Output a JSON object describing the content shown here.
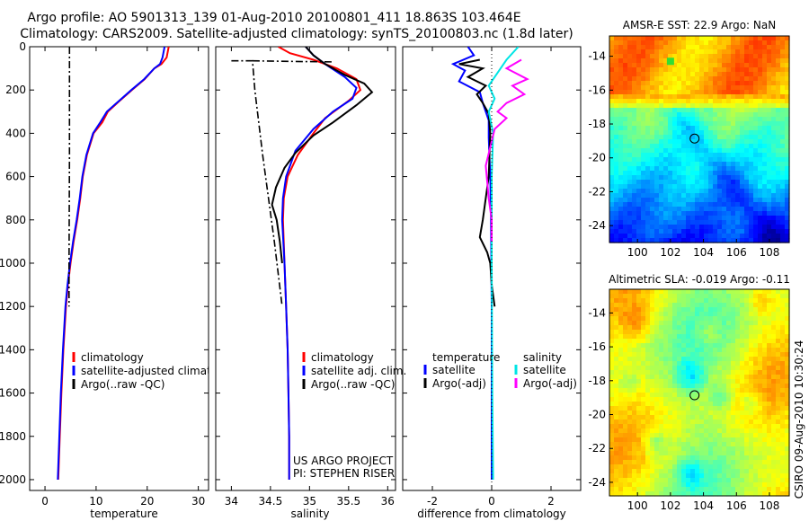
{
  "header": {
    "line1": "Argo profile: AO 5901313_139 01-Aug-2010 20100801_411 18.863S 103.464E",
    "line2": "Climatology: CARS2009. Satellite-adjusted climatology: synTS_20100803.nc (1.8d later)"
  },
  "side_label": "CSIRO 09-Aug-2010 10:30:24",
  "colors": {
    "clim": "#ff0000",
    "sat": "#0000ff",
    "argo": "#000000",
    "sal_sat": "#00e5e5",
    "sal_argo": "#ff00ff"
  },
  "chart_data": [
    {
      "type": "line",
      "id": "temperature",
      "xlabel": "temperature",
      "ylabel": "",
      "xlim": [
        -3,
        32
      ],
      "ylim": [
        2050,
        0
      ],
      "xticks": [
        0,
        10,
        20,
        30
      ],
      "yticks": [
        0,
        200,
        400,
        600,
        800,
        1000,
        1200,
        1400,
        1600,
        1800,
        2000
      ],
      "legend": [
        "climatology",
        "satellite-adjusted climatology",
        "Argo(..raw -QC)"
      ],
      "series": [
        {
          "role": "clim",
          "style": "solid",
          "x": [
            24.2,
            23.8,
            22.8,
            21.4,
            19.5,
            17.0,
            14.6,
            12.3,
            11.2,
            9.5,
            8.2,
            7.4,
            6.9,
            6.3,
            5.6,
            5.0,
            4.5,
            4.1,
            3.6,
            3.2,
            2.9,
            2.6
          ],
          "y": [
            0,
            50,
            80,
            100,
            150,
            200,
            250,
            300,
            350,
            400,
            500,
            600,
            700,
            800,
            900,
            1000,
            1100,
            1200,
            1400,
            1600,
            1800,
            2000
          ]
        },
        {
          "role": "sat",
          "style": "solid",
          "x": [
            23.4,
            23.0,
            22.5,
            21.4,
            19.4,
            16.9,
            14.5,
            12.1,
            10.8,
            9.4,
            8.1,
            7.3,
            6.8,
            6.2,
            5.5,
            4.9,
            4.4,
            4.0,
            3.5,
            3.1,
            2.8,
            2.5
          ],
          "y": [
            0,
            50,
            80,
            100,
            150,
            200,
            250,
            300,
            350,
            400,
            500,
            600,
            700,
            800,
            900,
            1000,
            1100,
            1200,
            1400,
            1600,
            1800,
            2000
          ]
        },
        {
          "role": "argo",
          "style": "dashdot",
          "x": [
            4.8,
            4.8,
            4.7,
            4.7
          ],
          "y": [
            0,
            500,
            1000,
            1200
          ]
        }
      ]
    },
    {
      "type": "line",
      "id": "salinity",
      "xlabel": "salinity",
      "ylabel": "",
      "xlim": [
        33.8,
        36.1
      ],
      "ylim": [
        2050,
        0
      ],
      "xticks": [
        34,
        34.5,
        35,
        35.5,
        36
      ],
      "legend": [
        "climatology",
        "satellite adj. clim.",
        "Argo(..raw -QC)"
      ],
      "annotation": [
        "US ARGO PROJECT",
        "PI: STEPHEN RISER"
      ],
      "series": [
        {
          "role": "clim",
          "style": "solid",
          "x": [
            34.6,
            34.75,
            35.05,
            35.35,
            35.6,
            35.65,
            35.5,
            35.2,
            35.05,
            34.85,
            34.72,
            34.67,
            34.66,
            34.68,
            34.7,
            34.72,
            34.73,
            34.74,
            34.74
          ],
          "y": [
            0,
            30,
            60,
            100,
            150,
            200,
            250,
            330,
            400,
            500,
            600,
            700,
            800,
            1000,
            1200,
            1400,
            1600,
            1800,
            2000
          ]
        },
        {
          "role": "sat",
          "style": "solid",
          "x": [
            34.95,
            35.05,
            35.2,
            35.45,
            35.6,
            35.55,
            35.3,
            35.05,
            34.82,
            34.7,
            34.66,
            34.65,
            34.68,
            34.7,
            34.72,
            34.73,
            34.74,
            34.74
          ],
          "y": [
            0,
            40,
            80,
            140,
            190,
            240,
            300,
            380,
            480,
            600,
            700,
            800,
            1000,
            1200,
            1400,
            1600,
            1800,
            2000
          ]
        },
        {
          "role": "argo",
          "style": "solid",
          "x": [
            34.95,
            35.05,
            35.2,
            35.45,
            35.7,
            35.8,
            35.6,
            35.3,
            35.05,
            34.82,
            34.68,
            34.57,
            34.52,
            34.58,
            34.62,
            34.65
          ],
          "y": [
            0,
            40,
            80,
            130,
            170,
            210,
            270,
            350,
            410,
            490,
            560,
            650,
            730,
            800,
            900,
            1000
          ]
        },
        {
          "role": "argo",
          "style": "dashdot",
          "x": [
            34.0,
            34.27,
            34.3,
            34.4,
            34.55,
            34.65
          ],
          "y": [
            65,
            65,
            200,
            500,
            900,
            1200
          ]
        },
        {
          "role": "argo",
          "style": "dashdot",
          "x": [
            34.27,
            34.8,
            35.3
          ],
          "y": [
            65,
            68,
            70
          ]
        }
      ]
    },
    {
      "type": "line",
      "id": "difference",
      "xlabel": "difference from climatology",
      "ylabel": "",
      "xlim": [
        -3,
        3
      ],
      "ylim": [
        2050,
        0
      ],
      "xticks": [
        -2,
        0,
        2
      ],
      "legend_left": [
        "temperature",
        "satellite",
        "Argo(-adj)"
      ],
      "legend_right": [
        "salinity",
        "satellite",
        "Argo(-adj)"
      ],
      "series": [
        {
          "role": "sat",
          "style": "solid",
          "x": [
            -0.8,
            -0.6,
            -1.3,
            -0.9,
            -1.1,
            -0.4,
            -0.3,
            -0.1,
            -0.1,
            -0.05,
            -0.02,
            0,
            0
          ],
          "y": [
            0,
            40,
            80,
            110,
            160,
            210,
            260,
            340,
            420,
            600,
            800,
            1200,
            2000
          ]
        },
        {
          "role": "argo",
          "style": "solid",
          "x": [
            -0.4,
            -1.1,
            -0.3,
            -0.8,
            -0.2,
            -0.5,
            -0.3,
            -0.1,
            -0.05,
            -0.1,
            -0.3,
            -0.4,
            -0.15,
            -0.05,
            0,
            0.1
          ],
          "y": [
            60,
            80,
            100,
            140,
            180,
            220,
            260,
            310,
            400,
            600,
            800,
            880,
            950,
            1000,
            1100,
            1200
          ]
        },
        {
          "role": "sal_sat",
          "style": "solid",
          "x": [
            0.9,
            0.5,
            0.2,
            -0.1,
            0.1,
            -0.1,
            0.05,
            0,
            0,
            0.02,
            0.05
          ],
          "y": [
            0,
            60,
            120,
            180,
            240,
            300,
            400,
            600,
            1000,
            1600,
            2000
          ]
        },
        {
          "role": "sal_argo",
          "style": "solid",
          "x": [
            1.0,
            0.5,
            1.2,
            0.7,
            1.1,
            0.5,
            0.2,
            0.5,
            0.1,
            -0.2,
            -0.1,
            0.0,
            0.0
          ],
          "y": [
            60,
            100,
            150,
            180,
            220,
            260,
            300,
            330,
            380,
            550,
            700,
            800,
            900
          ]
        }
      ]
    },
    {
      "type": "heatmap",
      "id": "amsre",
      "title": "AMSR-E SST: 22.9 Argo: NaN",
      "xlim": [
        98.3,
        109.2
      ],
      "ylim": [
        -25.0,
        -12.8
      ],
      "xticks": [
        100,
        102,
        104,
        106,
        108
      ],
      "yticks": [
        -14,
        -16,
        -18,
        -20,
        -22,
        -24
      ],
      "marker": [
        103.46,
        -18.86
      ]
    },
    {
      "type": "heatmap",
      "id": "sla",
      "title": "Altimetric SLA: -0.019 Argo: -0.11",
      "xlim": [
        98.3,
        109.2
      ],
      "ylim": [
        -24.8,
        -12.6
      ],
      "xticks": [
        100,
        102,
        104,
        106,
        108
      ],
      "yticks": [
        -14,
        -16,
        -18,
        -20,
        -22,
        -24
      ],
      "marker": [
        103.46,
        -18.86
      ]
    }
  ]
}
